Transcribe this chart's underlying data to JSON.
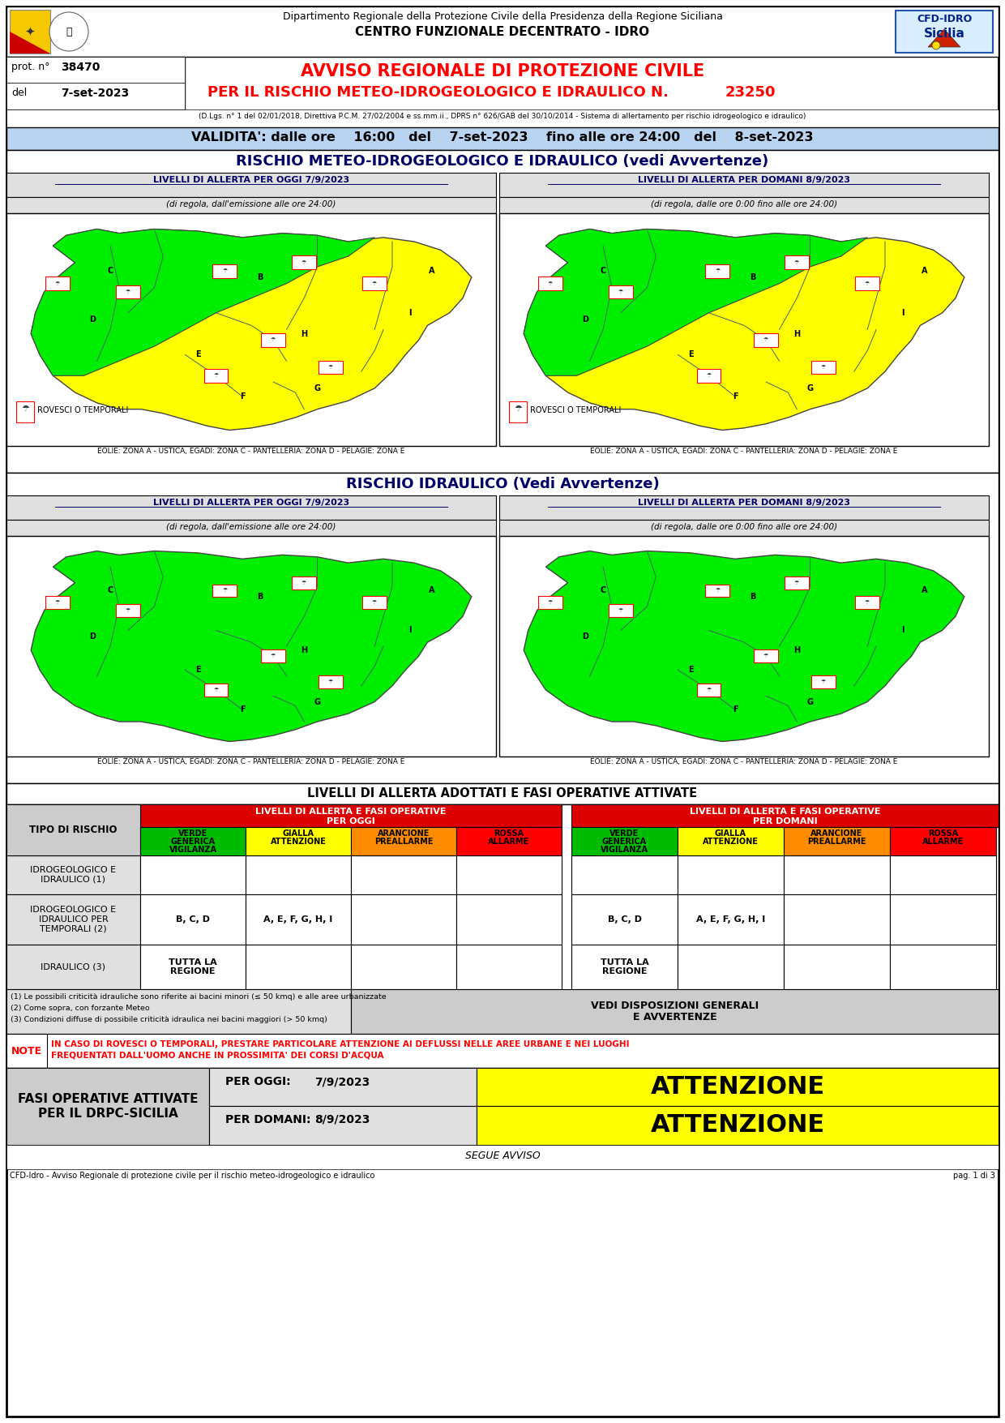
{
  "page_bg": "#ffffff",
  "header_title_line1": "Dipartimento Regionale della Protezione Civile della Presidenza della Regione Siciliana",
  "header_title_line2": "CENTRO FUNZIONALE DECENTRATO - IDRO",
  "prot_label": "prot. n°",
  "prot_number": "38470",
  "del_label": "del",
  "del_date": "7-set-2023",
  "avviso_line1": "AVVISO REGIONALE DI PROTEZIONE CIVILE",
  "avviso_line2": "PER IL RISCHIO METEO-IDROGEOLOGICO E IDRAULICO N.",
  "avviso_number": "23250",
  "ref_text": "(D.Lgs. n° 1 del 02/01/2018, Direttiva P.C.M. 27/02/2004 e ss.mm.ii., DPRS n° 626/GAB del 30/10/2014 - Sistema di allertamento per rischio idrogeologico e idraulico)",
  "validita_bg": "#b8d4f0",
  "validita_text": "VALIDITA': dalle ore    16:00   del    7-set-2023    fino alle ore 24:00   del    8-set-2023",
  "rischio_meteo_title": "RISCHIO METEO-IDROGEOLOGICO E IDRAULICO (vedi Avvertenze)",
  "oggi_title": "LIVELLI DI ALLERTA PER OGGI 7/9/2023",
  "oggi_subtitle": "(di regola, dall'emissione alle ore 24:00)",
  "domani_title": "LIVELLI DI ALLERTA PER DOMANI 8/9/2023",
  "domani_subtitle": "(di regola, dalle ore 0:00 fino alle ore 24:00)",
  "eolie_text": "EOLIE: ZONA A - USTICA, EGADI: ZONA C - PANTELLERIA: ZONA D - PELAGIE: ZONA E",
  "rischio_idraulico_title": "RISCHIO IDRAULICO (Vedi Avvertenze)",
  "table_title": "LIVELLI DI ALLERTA ADOTTATI E FASI OPERATIVE ATTIVATE",
  "table_oggi_header": "LIVELLI DI ALLERTA E FASI OPERATIVE\nPER OGGI",
  "table_domani_header": "LIVELLI DI ALLERTA E FASI OPERATIVE\nPER DOMANI",
  "col_verde_line1": "VERDE",
  "col_verde_line2": "GENERICA",
  "col_verde_line3": "VIGILANZA",
  "col_gialla_line1": "GIALLA",
  "col_gialla_line2": "ATTENZIONE",
  "col_arancione_line1": "ARANCIONE",
  "col_arancione_line2": "PREALLARME",
  "col_rossa_line1": "ROSSA",
  "col_rossa_line2": "ALLARME",
  "verde_bg": "#00bb00",
  "gialla_bg": "#ffff00",
  "arancione_bg": "#ff8c00",
  "rossa_bg": "#ff0000",
  "header_red_bg": "#dd0000",
  "gray_bg": "#cccccc",
  "light_gray_bg": "#e0e0e0",
  "map_green": "#00ee00",
  "map_yellow": "#ffff00",
  "tipo_rischio_label": "TIPO DI RISCHIO",
  "row1_label_line1": "IDROGEOLOGICO E",
  "row1_label_line2": "IDRAULICO (1)",
  "row2_label_line1": "IDROGEOLOGICO E",
  "row2_label_line2": "IDRAULICO PER",
  "row2_label_line3": "TEMPORALI (2)",
  "row2_oggi_gialla": "B, C, D",
  "row2_oggi_arancione": "A, E, F, G, H, I",
  "row2_domani_gialla": "B, C, D",
  "row2_domani_arancione": "A, E, F, G, H, I",
  "row3_label": "IDRAULICO (3)",
  "row3_oggi_verde": "TUTTA LA\nREGIONE",
  "row3_domani_verde": "TUTTA LA\nREGIONE",
  "note1": "(1) Le possibili criticità idrauliche sono riferite ai bacini minori (≤ 50 kmq) e alle aree urbanizzate",
  "note2": "(2) Come sopra, con forzante Meteo",
  "note3": "(3) Condizioni diffuse di possibile criticità idraulica nei bacini maggiori (> 50 kmq)",
  "vedi_disposizioni": "VEDI DISPOSIZIONI GENERALI\nE AVVERTENZE",
  "note_label": "NOTE",
  "note_text_line1": "IN CASO DI ROVESCI O TEMPORALI, PRESTARE PARTICOLARE ATTENZIONE AI DEFLUSSI NELLE AREE URBANE E NEI LUOGHI",
  "note_text_line2": "FREQUENTATI DALL'UOMO ANCHE IN PROSSIMITA' DEI CORSI D'ACQUA",
  "fasi_label_line1": "FASI OPERATIVE ATTIVATE",
  "fasi_label_line2": "PER IL DRPC-SICILIA",
  "per_oggi_label": "PER OGGI:",
  "per_oggi_date": "7/9/2023",
  "per_domani_label": "PER DOMANI:",
  "per_domani_date": "8/9/2023",
  "attenzione_oggi": "ATTENZIONE",
  "attenzione_domani": "ATTENZIONE",
  "segue_text": "SEGUE AVVISO",
  "footer_text": "CFD-Idro - Avviso Regionale di protezione civile per il rischio meteo-idrogeologico e idraulico",
  "footer_page": "pag. 1 di 3",
  "rovesci_label": "ROVESCI O TEMPORALI"
}
